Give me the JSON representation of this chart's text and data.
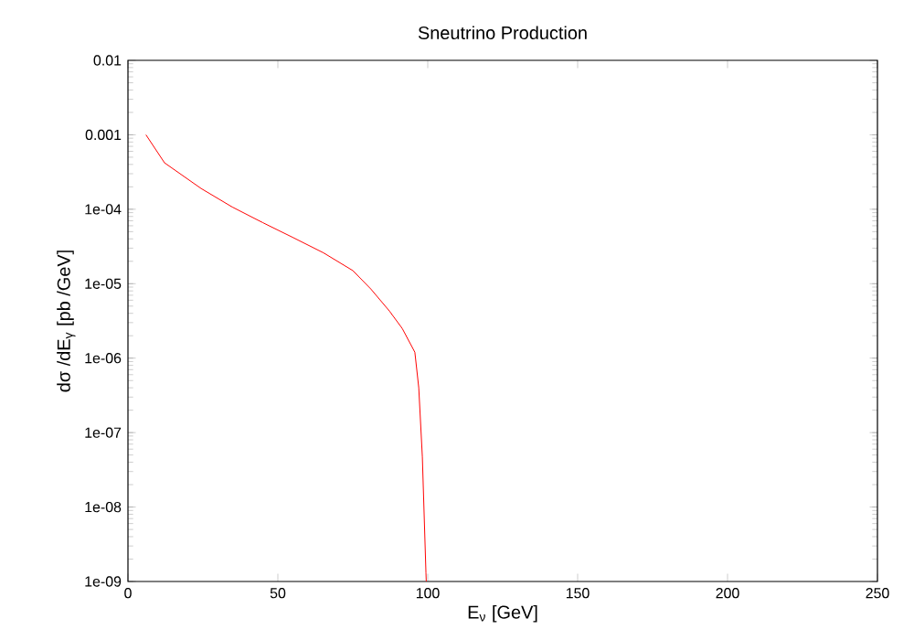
{
  "chart_data": {
    "type": "line",
    "title": "Sneutrino Production",
    "xlabel": "E$_{ν}$ [GeV]",
    "ylabel": "dσ /dE$_{γ}$ [pb /GeV]",
    "log": "y",
    "xlim": [
      0,
      250
    ],
    "xticks": [
      0,
      50,
      100,
      150,
      200,
      250
    ],
    "ylim": [
      1e-09,
      0.01
    ],
    "yticks": [
      {
        "value": 1e-09,
        "label": "1e-09"
      },
      {
        "value": 1e-08,
        "label": "1e-08"
      },
      {
        "value": 1e-07,
        "label": "1e-07"
      },
      {
        "value": 1e-06,
        "label": "1e-06"
      },
      {
        "value": 1e-05,
        "label": "1e-05"
      },
      {
        "value": 0.0001,
        "label": "1e-04"
      },
      {
        "value": 0.001,
        "label": "0.001"
      },
      {
        "value": 0.01,
        "label": "0.01"
      }
    ],
    "x": [
      6,
      12.2,
      24.4,
      34.8,
      45,
      54.9,
      65.2,
      75,
      81,
      87.2,
      91.5,
      95.7,
      97,
      98.2,
      99.4,
      99.5
    ],
    "series": [
      {
        "color": "#ff0000",
        "values": [
          0.001,
          0.00042,
          0.00019,
          0.000107,
          6.6e-05,
          4.2e-05,
          2.6e-05,
          1.5e-05,
          8.5e-06,
          4.3e-06,
          2.5e-06,
          1.2e-06,
          4e-07,
          4.7e-08,
          1.3e-09,
          1e-09
        ]
      }
    ]
  }
}
